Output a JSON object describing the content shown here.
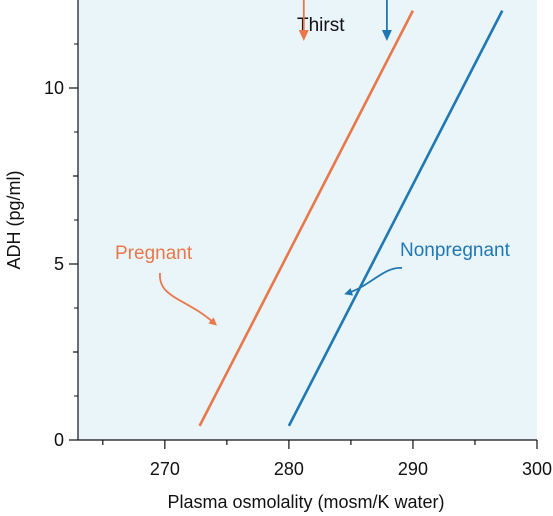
{
  "chart_data": {
    "type": "line",
    "xlabel": "Plasma osmolality (mosm/K water)",
    "ylabel": "ADH (pg/ml)",
    "xlim": [
      263,
      300
    ],
    "ylim": [
      0,
      12.5
    ],
    "x_ticks": [
      270,
      280,
      290,
      300
    ],
    "x_minor_ticks": [
      265,
      275,
      285,
      295
    ],
    "y_ticks": [
      0,
      5,
      10
    ],
    "y_minor_ticks": [
      2.5,
      7.5
    ],
    "grid": false,
    "background_color": "#eaf5fa",
    "series": [
      {
        "name": "Pregnant",
        "color": "#e8784a",
        "points": [
          [
            272.8,
            0.4
          ],
          [
            290.0,
            12.2
          ]
        ]
      },
      {
        "name": "Nonpregnant",
        "color": "#1f78b4",
        "points": [
          [
            280.0,
            0.4
          ],
          [
            297.2,
            12.2
          ]
        ]
      }
    ],
    "annotations": [
      {
        "text": "Pregnant",
        "color": "#e8784a"
      },
      {
        "text": "Nonpregnant",
        "color": "#1f78b4"
      },
      {
        "text": "Thirst",
        "color": "#111111"
      }
    ],
    "thirst_markers": [
      {
        "x": 281.2,
        "color": "#e8784a"
      },
      {
        "x": 287.9,
        "color": "#1f78b4"
      }
    ]
  }
}
